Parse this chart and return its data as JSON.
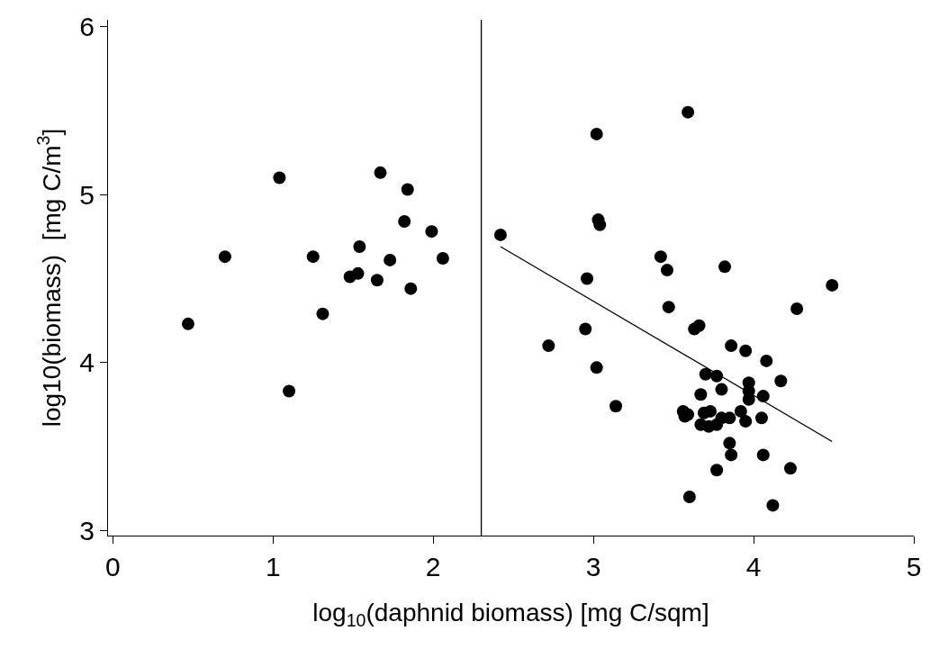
{
  "chart_data": {
    "type": "scatter",
    "xlabel": "log$_{10}$(daphnid biomass) [mg C/sqm]",
    "ylabel": "log10(biomass)  [mg C/m$^{3}$]",
    "xlim": [
      -0.03,
      5.0
    ],
    "ylim": [
      2.97,
      6.04
    ],
    "xticks": [
      0,
      1,
      2,
      3,
      4,
      5
    ],
    "yticks": [
      3,
      4,
      5,
      6
    ],
    "marker": "circle",
    "series": [
      {
        "color": "#000000",
        "x": [
          1.04,
          1.67,
          1.84,
          1.82,
          1.99,
          1.54,
          0.7,
          1.25,
          1.73,
          2.06,
          1.53,
          1.48,
          1.65,
          1.86,
          1.31,
          0.47,
          1.1,
          3.59,
          3.02,
          3.03,
          3.04,
          2.42,
          3.42,
          3.46,
          3.82,
          4.49,
          2.96,
          3.47,
          4.27,
          2.95,
          3.63,
          3.66,
          2.72,
          3.86,
          3.95,
          4.08,
          3.02,
          4.17,
          3.7,
          3.77,
          3.97,
          3.97,
          3.97,
          3.8,
          3.67,
          4.06,
          3.14,
          3.56,
          3.59,
          3.57,
          3.69,
          3.73,
          3.92,
          4.05,
          3.95,
          3.8,
          3.85,
          3.67,
          3.72,
          3.77,
          3.85,
          3.86,
          4.06,
          3.77,
          4.23,
          3.6,
          4.12
        ],
        "values": [
          5.1,
          5.13,
          5.03,
          4.84,
          4.78,
          4.69,
          4.63,
          4.63,
          4.61,
          4.62,
          4.53,
          4.51,
          4.49,
          4.44,
          4.29,
          4.23,
          3.83,
          5.49,
          5.36,
          4.85,
          4.82,
          4.76,
          4.63,
          4.55,
          4.57,
          4.46,
          4.5,
          4.33,
          4.32,
          4.2,
          4.2,
          4.22,
          4.1,
          4.1,
          4.07,
          4.01,
          3.97,
          3.89,
          3.93,
          3.92,
          3.88,
          3.83,
          3.78,
          3.84,
          3.81,
          3.8,
          3.74,
          3.71,
          3.69,
          3.68,
          3.7,
          3.71,
          3.71,
          3.67,
          3.65,
          3.67,
          3.67,
          3.63,
          3.62,
          3.63,
          3.52,
          3.45,
          3.45,
          3.36,
          3.37,
          3.2,
          3.15
        ]
      },
      {
        "type": "line",
        "color": "#000000",
        "x": [
          2.42,
          4.49
        ],
        "values": [
          4.69,
          3.53
        ],
        "marker": "none",
        "line_style": "solid"
      }
    ],
    "ref_lines": [
      {
        "axis": "x",
        "value": 2.3,
        "color": "#000000",
        "line_style": "solid"
      }
    ]
  }
}
